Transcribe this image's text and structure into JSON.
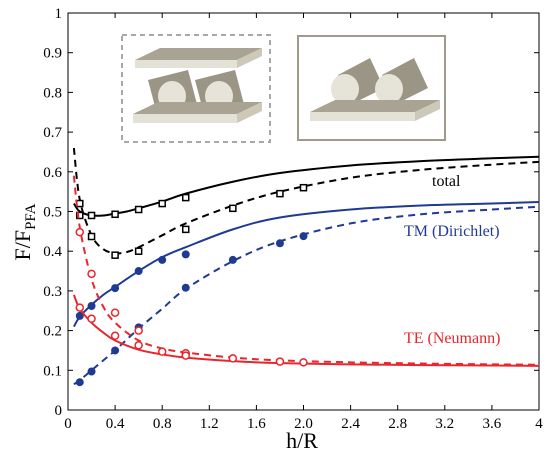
{
  "chart_data": {
    "type": "line",
    "title": "",
    "xlabel": "h/R",
    "ylabel_main": "F/F",
    "ylabel_sub": "PFA",
    "xlim": [
      0,
      4
    ],
    "ylim": [
      0,
      1
    ],
    "xticks": [
      0,
      0.4,
      0.8,
      1.2,
      1.6,
      2.0,
      2.4,
      2.8,
      3.2,
      3.6,
      4
    ],
    "xtick_labels": [
      "0",
      "0.4",
      "0.8",
      "1.2",
      "1.6",
      "2.0",
      "2.4",
      "2.8",
      "3.2",
      "3.6",
      "4"
    ],
    "yticks": [
      0,
      0.1,
      0.2,
      0.3,
      0.4,
      0.5,
      0.6,
      0.7,
      0.8,
      0.9,
      1
    ],
    "ytick_labels": [
      "0",
      "0.1",
      "0.2",
      "0.3",
      "0.4",
      "0.5",
      "0.6",
      "0.7",
      "0.8",
      "0.9",
      "1"
    ],
    "grid": false,
    "series": [
      {
        "label": "total",
        "color": "#000000",
        "marker": "square-open",
        "curves": [
          {
            "style": "solid",
            "x": [
              0.05,
              0.1,
              0.2,
              0.3,
              0.4,
              0.5,
              0.6,
              0.8,
              1.0,
              1.4,
              1.8,
              2.4,
              3.0,
              3.6,
              4.0
            ],
            "y": [
              0.52,
              0.5,
              0.49,
              0.49,
              0.495,
              0.5,
              0.508,
              0.525,
              0.545,
              0.575,
              0.597,
              0.616,
              0.627,
              0.634,
              0.638
            ]
          },
          {
            "style": "dashed",
            "x": [
              0.05,
              0.1,
              0.2,
              0.3,
              0.4,
              0.5,
              0.6,
              0.8,
              1.0,
              1.4,
              1.8,
              2.4,
              3.0,
              3.6,
              4.0
            ],
            "y": [
              0.66,
              0.53,
              0.44,
              0.405,
              0.395,
              0.398,
              0.41,
              0.44,
              0.47,
              0.515,
              0.55,
              0.585,
              0.605,
              0.618,
              0.625
            ]
          }
        ],
        "points": [
          {
            "x": [
              0.1,
              0.2,
              0.4,
              0.6,
              0.8,
              1.0
            ],
            "y": [
              0.49,
              0.49,
              0.493,
              0.505,
              0.52,
              0.535
            ]
          },
          {
            "x": [
              0.1,
              0.2,
              0.4,
              0.6,
              1.0,
              1.4,
              1.8,
              2.0
            ],
            "y": [
              0.52,
              0.437,
              0.39,
              0.4,
              0.455,
              0.508,
              0.545,
              0.56
            ]
          }
        ]
      },
      {
        "label": "TM (Dirichlet)",
        "color": "#1f3a93",
        "marker": "circle-filled",
        "curves": [
          {
            "style": "solid",
            "x": [
              0.05,
              0.1,
              0.2,
              0.3,
              0.4,
              0.6,
              0.8,
              1.0,
              1.4,
              1.8,
              2.4,
              3.0,
              3.6,
              4.0
            ],
            "y": [
              0.21,
              0.235,
              0.265,
              0.29,
              0.31,
              0.35,
              0.385,
              0.41,
              0.455,
              0.485,
              0.505,
              0.515,
              0.52,
              0.524
            ]
          },
          {
            "style": "dashed",
            "x": [
              0.05,
              0.1,
              0.2,
              0.3,
              0.4,
              0.6,
              0.8,
              1.0,
              1.4,
              1.8,
              2.4,
              3.0,
              3.6,
              4.0
            ],
            "y": [
              0.065,
              0.075,
              0.1,
              0.125,
              0.15,
              0.205,
              0.255,
              0.305,
              0.375,
              0.425,
              0.47,
              0.493,
              0.505,
              0.512
            ]
          }
        ],
        "points": [
          {
            "x": [
              0.1,
              0.2,
              0.4,
              0.6,
              0.8,
              1.0
            ],
            "y": [
              0.237,
              0.262,
              0.307,
              0.35,
              0.378,
              0.392
            ]
          },
          {
            "x": [
              0.1,
              0.2,
              0.4,
              0.6,
              1.0,
              1.4,
              1.8,
              2.0
            ],
            "y": [
              0.07,
              0.097,
              0.15,
              0.208,
              0.308,
              0.378,
              0.42,
              0.438
            ]
          }
        ]
      },
      {
        "label": "TE (Neumann)",
        "color": "#e8262c",
        "marker": "circle-open",
        "curves": [
          {
            "style": "solid",
            "x": [
              0.05,
              0.1,
              0.2,
              0.3,
              0.4,
              0.6,
              0.8,
              1.0,
              1.4,
              1.8,
              2.4,
              3.0,
              3.6,
              4.0
            ],
            "y": [
              0.29,
              0.255,
              0.22,
              0.195,
              0.175,
              0.152,
              0.14,
              0.132,
              0.123,
              0.118,
              0.115,
              0.113,
              0.112,
              0.111
            ]
          },
          {
            "style": "dashed",
            "x": [
              0.05,
              0.1,
              0.2,
              0.3,
              0.4,
              0.6,
              0.8,
              1.0,
              1.4,
              1.8,
              2.4,
              3.0,
              3.6,
              4.0
            ],
            "y": [
              0.59,
              0.46,
              0.33,
              0.26,
              0.22,
              0.175,
              0.155,
              0.145,
              0.132,
              0.125,
              0.12,
              0.117,
              0.115,
              0.114
            ]
          }
        ],
        "points": [
          {
            "x": [
              0.1,
              0.2,
              0.4,
              0.6,
              1.0,
              1.4,
              1.8,
              2.0
            ],
            "y": [
              0.448,
              0.343,
              0.245,
              0.2,
              0.143,
              0.13,
              0.122,
              0.12
            ]
          },
          {
            "x": [
              0.1,
              0.2,
              0.4,
              0.6,
              0.8,
              1.0
            ],
            "y": [
              0.258,
              0.23,
              0.187,
              0.163,
              0.147,
              0.137
            ]
          }
        ]
      }
    ]
  }
}
